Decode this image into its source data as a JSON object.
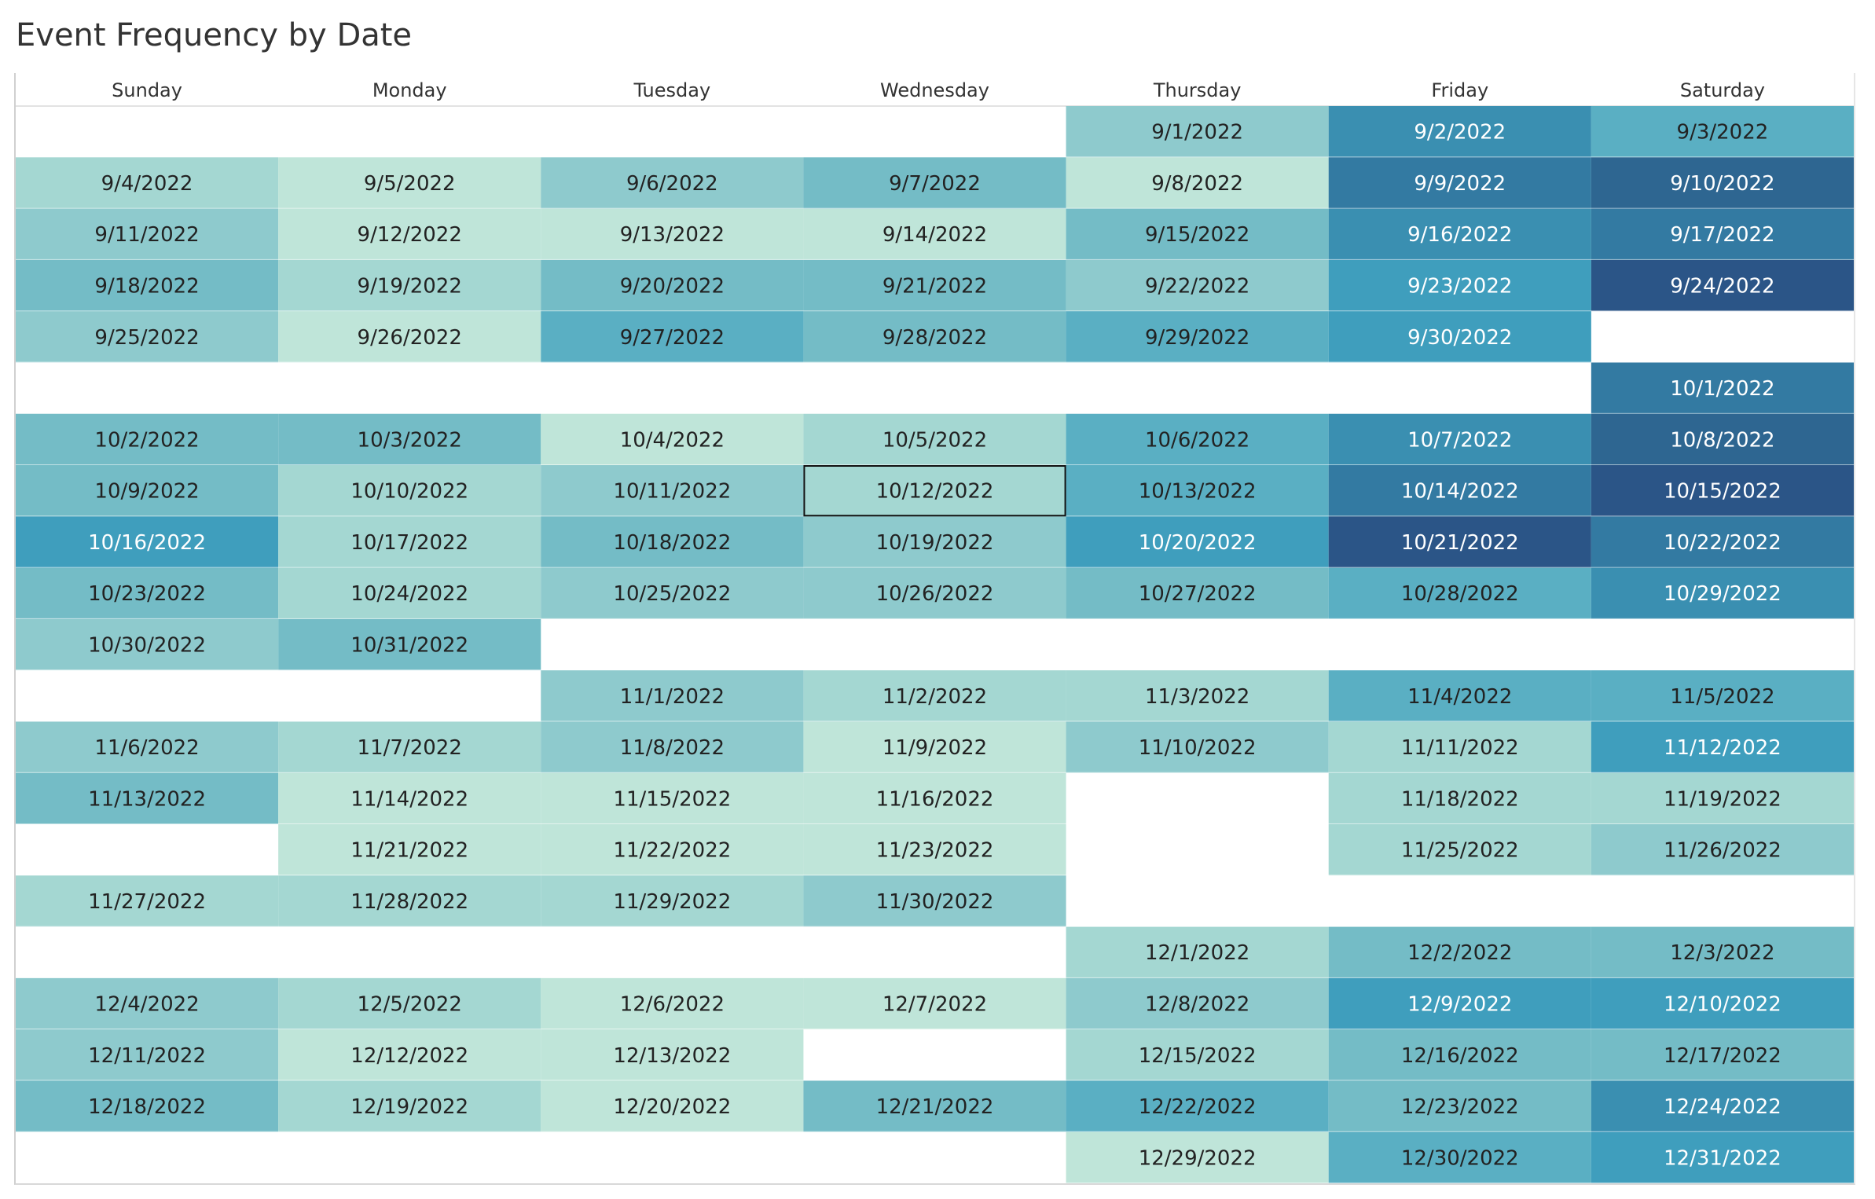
{
  "chart_data": {
    "type": "heatmap",
    "title": "Event Frequency by Date",
    "columns": [
      "Sunday",
      "Monday",
      "Tuesday",
      "Wednesday",
      "Thursday",
      "Friday",
      "Saturday"
    ],
    "color_scale": [
      "#bfe5d9",
      "#a4d7d2",
      "#8ecacd",
      "#74bcc6",
      "#5aafc3",
      "#3f9ebd",
      "#3a8fb1",
      "#337aa2",
      "#2e6691",
      "#2b5587"
    ],
    "rows": [
      [
        null,
        null,
        null,
        null,
        {
          "date": "9/1/2022",
          "level": 2
        },
        {
          "date": "9/2/2022",
          "level": 6
        },
        {
          "date": "9/3/2022",
          "level": 4
        }
      ],
      [
        {
          "date": "9/4/2022",
          "level": 1
        },
        {
          "date": "9/5/2022",
          "level": 0
        },
        {
          "date": "9/6/2022",
          "level": 2
        },
        {
          "date": "9/7/2022",
          "level": 3
        },
        {
          "date": "9/8/2022",
          "level": 0
        },
        {
          "date": "9/9/2022",
          "level": 7
        },
        {
          "date": "9/10/2022",
          "level": 8
        }
      ],
      [
        {
          "date": "9/11/2022",
          "level": 2
        },
        {
          "date": "9/12/2022",
          "level": 0
        },
        {
          "date": "9/13/2022",
          "level": 0
        },
        {
          "date": "9/14/2022",
          "level": 0
        },
        {
          "date": "9/15/2022",
          "level": 3
        },
        {
          "date": "9/16/2022",
          "level": 6
        },
        {
          "date": "9/17/2022",
          "level": 7
        }
      ],
      [
        {
          "date": "9/18/2022",
          "level": 3
        },
        {
          "date": "9/19/2022",
          "level": 1
        },
        {
          "date": "9/20/2022",
          "level": 3
        },
        {
          "date": "9/21/2022",
          "level": 3
        },
        {
          "date": "9/22/2022",
          "level": 2
        },
        {
          "date": "9/23/2022",
          "level": 5
        },
        {
          "date": "9/24/2022",
          "level": 9
        }
      ],
      [
        {
          "date": "9/25/2022",
          "level": 2
        },
        {
          "date": "9/26/2022",
          "level": 0
        },
        {
          "date": "9/27/2022",
          "level": 4
        },
        {
          "date": "9/28/2022",
          "level": 3
        },
        {
          "date": "9/29/2022",
          "level": 4
        },
        {
          "date": "9/30/2022",
          "level": 5
        },
        null
      ],
      [
        null,
        null,
        null,
        null,
        null,
        null,
        {
          "date": "10/1/2022",
          "level": 7
        }
      ],
      [
        {
          "date": "10/2/2022",
          "level": 3
        },
        {
          "date": "10/3/2022",
          "level": 3
        },
        {
          "date": "10/4/2022",
          "level": 0
        },
        {
          "date": "10/5/2022",
          "level": 1
        },
        {
          "date": "10/6/2022",
          "level": 4
        },
        {
          "date": "10/7/2022",
          "level": 6
        },
        {
          "date": "10/8/2022",
          "level": 8
        }
      ],
      [
        {
          "date": "10/9/2022",
          "level": 3
        },
        {
          "date": "10/10/2022",
          "level": 1
        },
        {
          "date": "10/11/2022",
          "level": 2
        },
        {
          "date": "10/12/2022",
          "level": 1,
          "selected": true
        },
        {
          "date": "10/13/2022",
          "level": 4
        },
        {
          "date": "10/14/2022",
          "level": 7
        },
        {
          "date": "10/15/2022",
          "level": 9
        }
      ],
      [
        {
          "date": "10/16/2022",
          "level": 5
        },
        {
          "date": "10/17/2022",
          "level": 1
        },
        {
          "date": "10/18/2022",
          "level": 3
        },
        {
          "date": "10/19/2022",
          "level": 2
        },
        {
          "date": "10/20/2022",
          "level": 5
        },
        {
          "date": "10/21/2022",
          "level": 9
        },
        {
          "date": "10/22/2022",
          "level": 7
        }
      ],
      [
        {
          "date": "10/23/2022",
          "level": 3
        },
        {
          "date": "10/24/2022",
          "level": 1
        },
        {
          "date": "10/25/2022",
          "level": 2
        },
        {
          "date": "10/26/2022",
          "level": 2
        },
        {
          "date": "10/27/2022",
          "level": 3
        },
        {
          "date": "10/28/2022",
          "level": 4
        },
        {
          "date": "10/29/2022",
          "level": 6
        }
      ],
      [
        {
          "date": "10/30/2022",
          "level": 2
        },
        {
          "date": "10/31/2022",
          "level": 3
        },
        null,
        null,
        null,
        null,
        null
      ],
      [
        null,
        null,
        {
          "date": "11/1/2022",
          "level": 2
        },
        {
          "date": "11/2/2022",
          "level": 1
        },
        {
          "date": "11/3/2022",
          "level": 1
        },
        {
          "date": "11/4/2022",
          "level": 4
        },
        {
          "date": "11/5/2022",
          "level": 4
        }
      ],
      [
        {
          "date": "11/6/2022",
          "level": 2
        },
        {
          "date": "11/7/2022",
          "level": 1
        },
        {
          "date": "11/8/2022",
          "level": 2
        },
        {
          "date": "11/9/2022",
          "level": 0
        },
        {
          "date": "11/10/2022",
          "level": 2
        },
        {
          "date": "11/11/2022",
          "level": 1
        },
        {
          "date": "11/12/2022",
          "level": 5
        }
      ],
      [
        {
          "date": "11/13/2022",
          "level": 3
        },
        {
          "date": "11/14/2022",
          "level": 0
        },
        {
          "date": "11/15/2022",
          "level": 0
        },
        {
          "date": "11/16/2022",
          "level": 0
        },
        null,
        {
          "date": "11/18/2022",
          "level": 1
        },
        {
          "date": "11/19/2022",
          "level": 1
        }
      ],
      [
        null,
        {
          "date": "11/21/2022",
          "level": 0
        },
        {
          "date": "11/22/2022",
          "level": 0
        },
        {
          "date": "11/23/2022",
          "level": 0
        },
        null,
        {
          "date": "11/25/2022",
          "level": 1
        },
        {
          "date": "11/26/2022",
          "level": 2
        }
      ],
      [
        {
          "date": "11/27/2022",
          "level": 1
        },
        {
          "date": "11/28/2022",
          "level": 1
        },
        {
          "date": "11/29/2022",
          "level": 1
        },
        {
          "date": "11/30/2022",
          "level": 2
        },
        null,
        null,
        null
      ],
      [
        null,
        null,
        null,
        null,
        {
          "date": "12/1/2022",
          "level": 1
        },
        {
          "date": "12/2/2022",
          "level": 3
        },
        {
          "date": "12/3/2022",
          "level": 3
        }
      ],
      [
        {
          "date": "12/4/2022",
          "level": 2
        },
        {
          "date": "12/5/2022",
          "level": 1
        },
        {
          "date": "12/6/2022",
          "level": 0
        },
        {
          "date": "12/7/2022",
          "level": 0
        },
        {
          "date": "12/8/2022",
          "level": 2
        },
        {
          "date": "12/9/2022",
          "level": 5
        },
        {
          "date": "12/10/2022",
          "level": 5
        }
      ],
      [
        {
          "date": "12/11/2022",
          "level": 2
        },
        {
          "date": "12/12/2022",
          "level": 0
        },
        {
          "date": "12/13/2022",
          "level": 0
        },
        null,
        {
          "date": "12/15/2022",
          "level": 1
        },
        {
          "date": "12/16/2022",
          "level": 3
        },
        {
          "date": "12/17/2022",
          "level": 3
        }
      ],
      [
        {
          "date": "12/18/2022",
          "level": 3
        },
        {
          "date": "12/19/2022",
          "level": 1
        },
        {
          "date": "12/20/2022",
          "level": 0
        },
        {
          "date": "12/21/2022",
          "level": 3
        },
        {
          "date": "12/22/2022",
          "level": 4
        },
        {
          "date": "12/23/2022",
          "level": 3
        },
        {
          "date": "12/24/2022",
          "level": 6
        }
      ],
      [
        null,
        null,
        null,
        null,
        {
          "date": "12/29/2022",
          "level": 0
        },
        {
          "date": "12/30/2022",
          "level": 4
        },
        {
          "date": "12/31/2022",
          "level": 5
        }
      ]
    ]
  }
}
